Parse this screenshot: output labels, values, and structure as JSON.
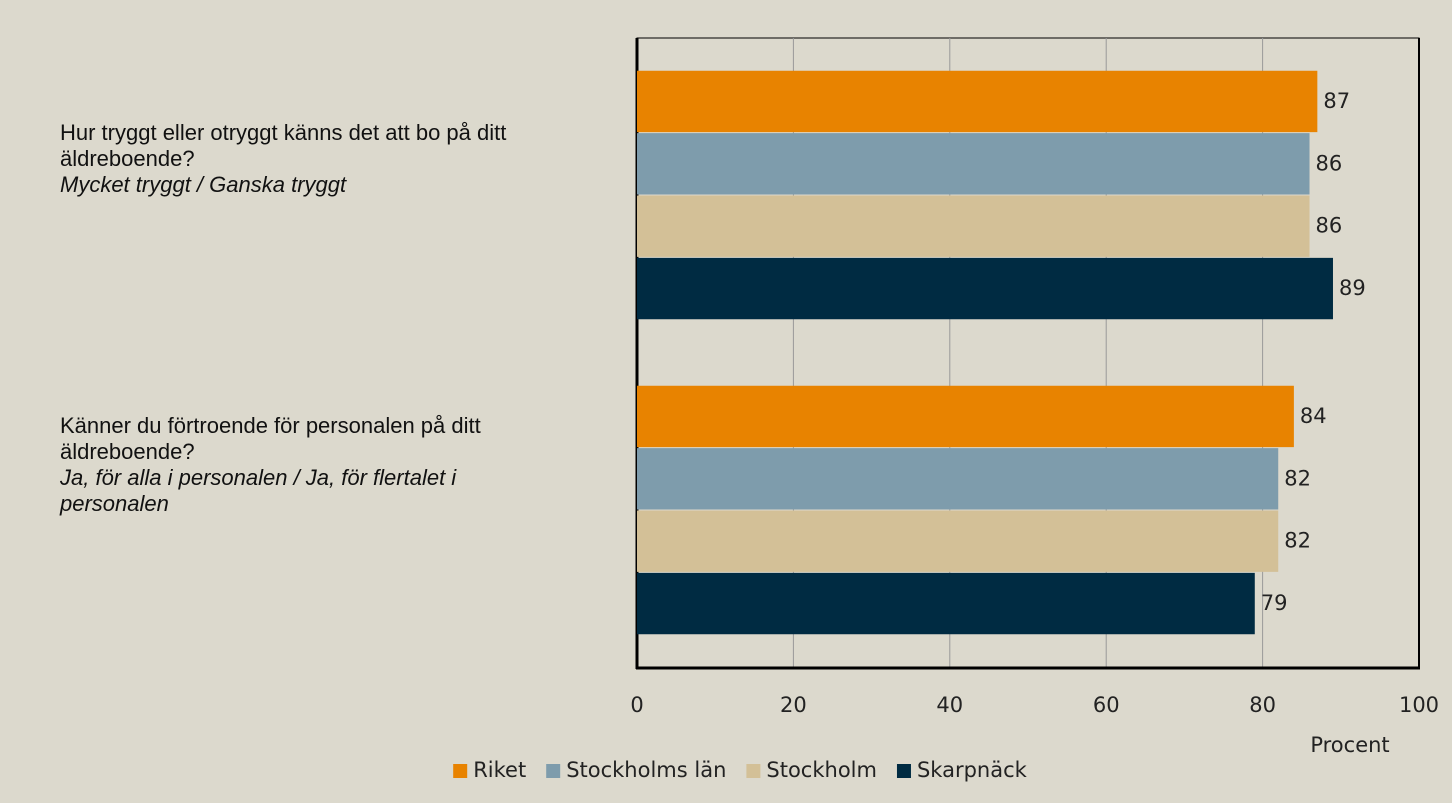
{
  "chart_data": {
    "type": "hbar",
    "categories": [
      "Hur tryggt eller otryggt känns det att bo på ditt äldreboende?",
      "Känner du förtroende för personalen på ditt äldreboende?"
    ],
    "category_notes": [
      "Mycket tryggt / Ganska tryggt",
      "Ja, för alla i personalen / Ja, för flertalet i personalen"
    ],
    "series": [
      {
        "name": "Riket",
        "color": "#e88300",
        "values": [
          87,
          84
        ]
      },
      {
        "name": "Stockholms län",
        "color": "#7e9cac",
        "values": [
          86,
          82
        ]
      },
      {
        "name": "Stockholm",
        "color": "#d3c097",
        "values": [
          86,
          82
        ]
      },
      {
        "name": "Skarpnäck",
        "color": "#002b42",
        "values": [
          89,
          79
        ]
      }
    ],
    "xlabel": "Procent",
    "xlim": [
      0,
      100
    ],
    "xticks": [
      0,
      20,
      40,
      60,
      80,
      100
    ],
    "grid": true,
    "legend": "bottom"
  }
}
